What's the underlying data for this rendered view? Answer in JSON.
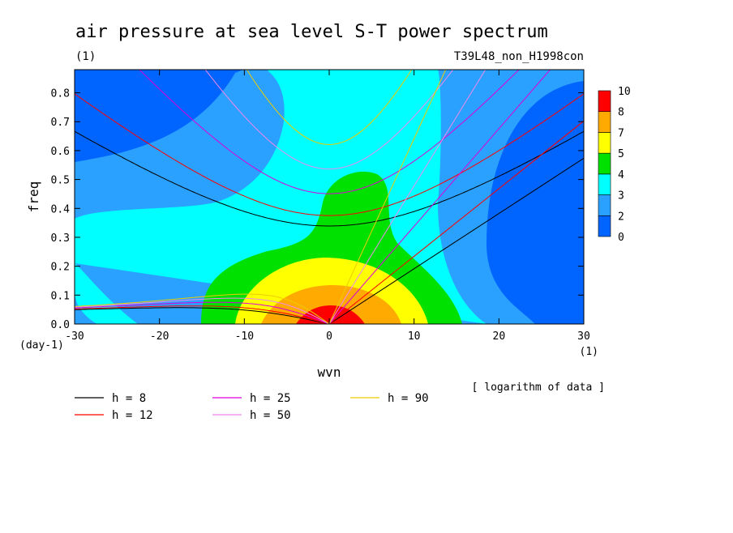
{
  "chart_data": {
    "type": "heatmap",
    "title": "air pressure at sea level S-T power spectrum",
    "units_label": "(1)",
    "run_label": "T39L48_non_H1998con",
    "xlabel": "wvn",
    "ylabel": "freq",
    "x_unit": "(1)",
    "y_unit": "(day-1)",
    "xlim": [
      -30,
      30
    ],
    "ylim": [
      0,
      0.88
    ],
    "x_ticks": [
      "-30",
      "-20",
      "-10",
      "0",
      "10",
      "20",
      "30"
    ],
    "y_ticks": [
      "0.0",
      "0.1",
      "0.2",
      "0.3",
      "0.4",
      "0.5",
      "0.6",
      "0.7",
      "0.8"
    ],
    "colorbar": {
      "levels": [
        "0",
        "2",
        "3",
        "4",
        "5",
        "7",
        "8",
        "10"
      ],
      "colors": [
        "#0064ff",
        "#2aa0ff",
        "#00ffff",
        "#00e100",
        "#ffff00",
        "#ffaa00",
        "#ff0000"
      ]
    },
    "note": "[ logarithm of data ]",
    "dispersion_curves": [
      {
        "label": "h =  8",
        "h": 8,
        "color": "#000000"
      },
      {
        "label": "h = 12",
        "h": 12,
        "color": "#ff0000"
      },
      {
        "label": "h = 25",
        "h": 25,
        "color": "#dd00dd"
      },
      {
        "label": "h = 50",
        "h": 50,
        "color": "#ee88ee"
      },
      {
        "label": "h = 90",
        "h": 90,
        "color": "#eecc00"
      }
    ]
  }
}
